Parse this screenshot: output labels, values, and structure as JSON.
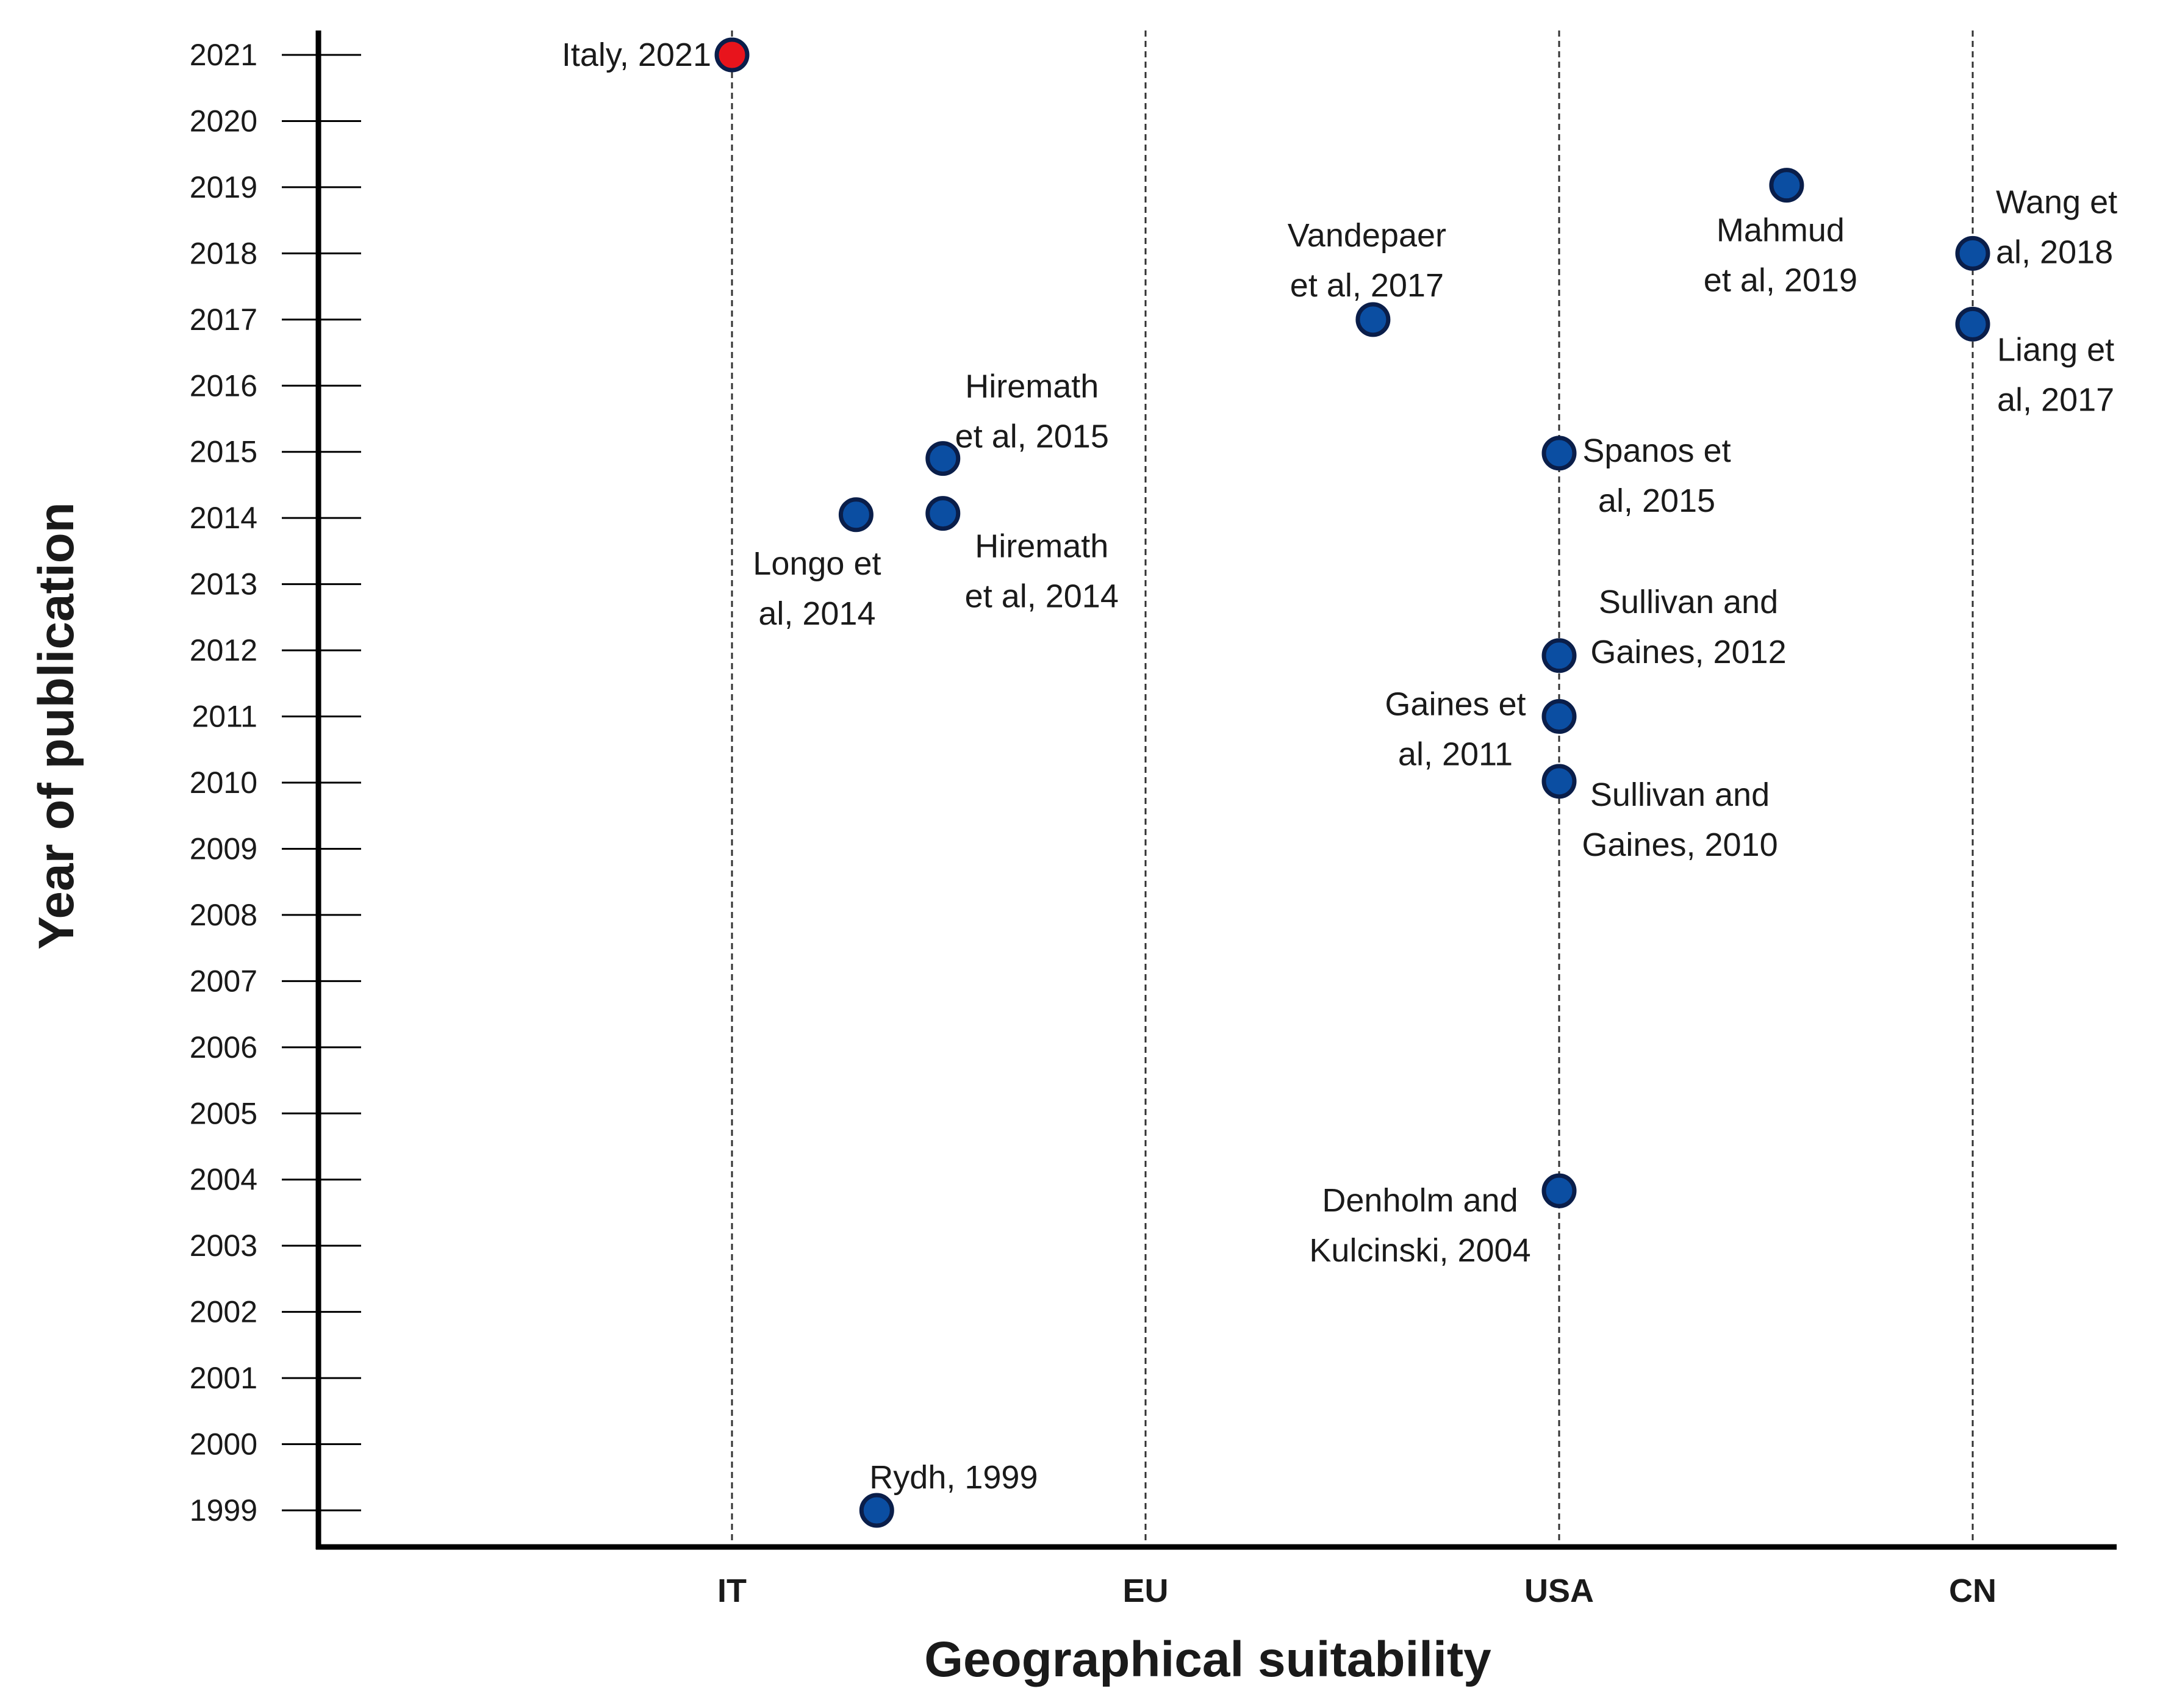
{
  "chart_data": {
    "type": "scatter",
    "xlabel": "Geographical suitability",
    "ylabel": "Year of publication",
    "categories": [
      "IT",
      "EU",
      "USA",
      "CN"
    ],
    "ylim": [
      1999,
      2021
    ],
    "yticks": [
      2021,
      2020,
      2019,
      2018,
      2017,
      2016,
      2015,
      2014,
      2013,
      2012,
      2011,
      2010,
      2009,
      2008,
      2007,
      2006,
      2005,
      2004,
      2003,
      2002,
      2001,
      2000,
      1999
    ],
    "grid": "vertical dashed lines at categories",
    "colors": {
      "highlight": "#e8141c",
      "point": "#0b4ea2",
      "point_edge": "#0a1e4a"
    },
    "points": [
      {
        "id": "italy-2021",
        "x": 0.0,
        "y": 2021.0,
        "label": [
          "Italy, 2021"
        ],
        "highlight": true,
        "anchor": "end",
        "dx": -34,
        "dy": 0,
        "line_dy": 0
      },
      {
        "id": "rydh-1999",
        "x": 0.35,
        "y": 1999.0,
        "label": [
          "Rydh, 1999"
        ],
        "highlight": false,
        "anchor": "start",
        "dx": -12,
        "dy": -54,
        "line_dy": 0
      },
      {
        "id": "longo-2014",
        "x": 0.3,
        "y": 2014.05,
        "label": [
          "Longo et",
          "al, 2014"
        ],
        "highlight": false,
        "anchor": "middle",
        "dx": -64,
        "dy": 80,
        "line_dy": 82
      },
      {
        "id": "hiremath-2015",
        "x": 0.51,
        "y": 2014.9,
        "label": [
          "Hiremath",
          "et al, 2015"
        ],
        "highlight": false,
        "anchor": "middle",
        "dx": 146,
        "dy": -118,
        "line_dy": 82
      },
      {
        "id": "hiremath-2014",
        "x": 0.51,
        "y": 2014.07,
        "label": [
          "Hiremath",
          "et al, 2014"
        ],
        "highlight": false,
        "anchor": "middle",
        "dx": 162,
        "dy": 54,
        "line_dy": 82
      },
      {
        "id": "vandepaer-2017",
        "x": 1.55,
        "y": 2017.0,
        "label": [
          "Vandepaer",
          "et al, 2017"
        ],
        "highlight": false,
        "anchor": "middle",
        "dx": -10,
        "dy": -138,
        "line_dy": 82
      },
      {
        "id": "mahmud-2019",
        "x": 2.55,
        "y": 2019.03,
        "label": [
          "Mahmud",
          "et al, 2019"
        ],
        "highlight": false,
        "anchor": "middle",
        "dx": -10,
        "dy": 74,
        "line_dy": 82
      },
      {
        "id": "wang-2018",
        "x": 3.0,
        "y": 2018.0,
        "label": [
          "Wang et",
          "al, 2018"
        ],
        "highlight": false,
        "anchor": "start",
        "dx": 38,
        "dy": -84,
        "line_dy": 82
      },
      {
        "id": "liang-2017",
        "x": 3.0,
        "y": 2016.93,
        "label": [
          "Liang et",
          "al, 2017"
        ],
        "highlight": false,
        "anchor": "start",
        "dx": 40,
        "dy": 42,
        "line_dy": 82
      },
      {
        "id": "spanos-2015",
        "x": 2.0,
        "y": 2014.98,
        "label": [
          "Spanos et",
          "al, 2015"
        ],
        "highlight": false,
        "anchor": "middle",
        "dx": 160,
        "dy": -4,
        "line_dy": 82
      },
      {
        "id": "sullivan-2012",
        "x": 2.0,
        "y": 2011.92,
        "label": [
          "Sullivan and",
          "Gaines, 2012"
        ],
        "highlight": false,
        "anchor": "middle",
        "dx": 212,
        "dy": -88,
        "line_dy": 82
      },
      {
        "id": "gaines-2011",
        "x": 2.0,
        "y": 2011.0,
        "label": [
          "Gaines et",
          "al, 2011"
        ],
        "highlight": false,
        "anchor": "middle",
        "dx": -170,
        "dy": -20,
        "line_dy": 82
      },
      {
        "id": "sullivan-2010",
        "x": 2.0,
        "y": 2010.02,
        "label": [
          "Sullivan and",
          "Gaines, 2010"
        ],
        "highlight": false,
        "anchor": "middle",
        "dx": 198,
        "dy": 22,
        "line_dy": 82
      },
      {
        "id": "denholm-2004",
        "x": 2.0,
        "y": 2003.83,
        "label": [
          "Denholm and",
          "Kulcinski, 2004"
        ],
        "highlight": false,
        "anchor": "middle",
        "dx": -228,
        "dy": 16,
        "line_dy": 82
      }
    ]
  }
}
